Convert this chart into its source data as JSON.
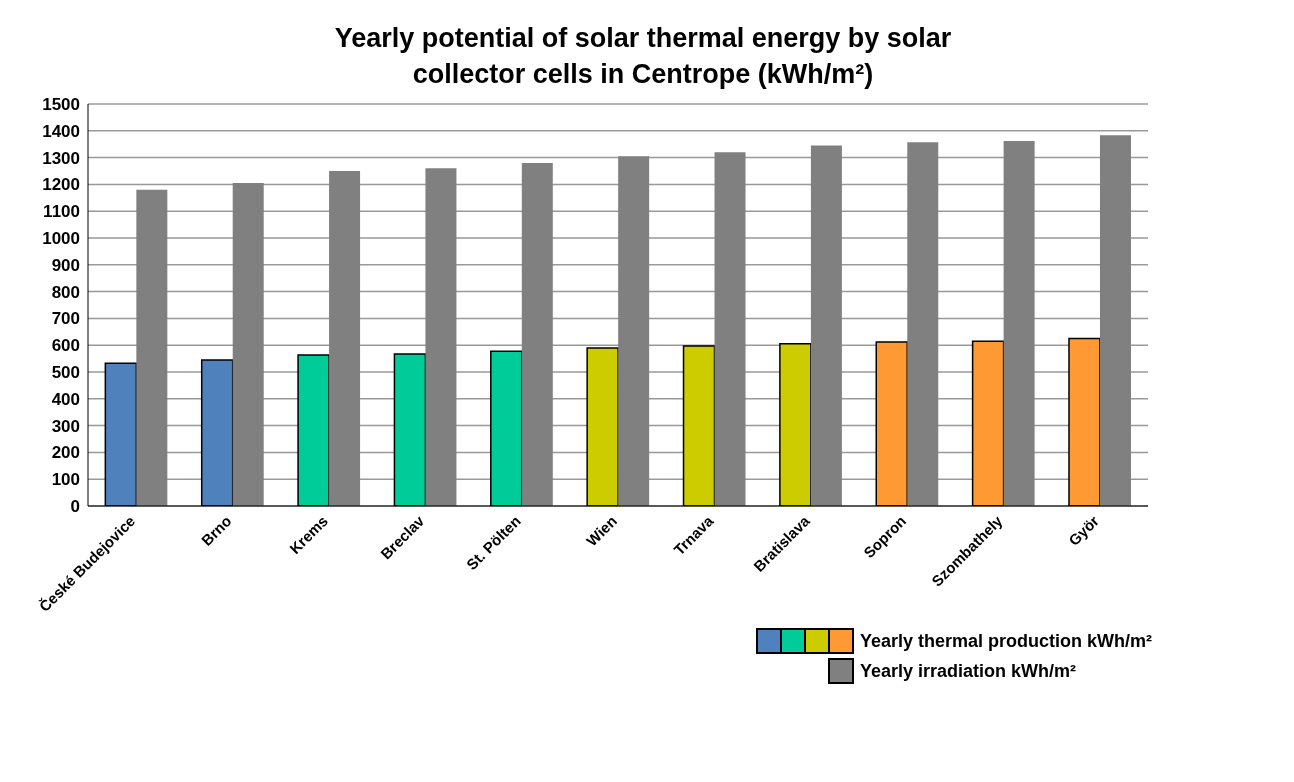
{
  "chart_data": {
    "type": "bar",
    "title": "Yearly potential of solar thermal energy by solar collector cells in Centrope (kWh/m²)",
    "categories": [
      "České Budejovice",
      "Brno",
      "Krems",
      "Breclav",
      "St. Pölten",
      "Wien",
      "Trnava",
      "Bratislava",
      "Sopron",
      "Szombathely",
      "Györ"
    ],
    "series": [
      {
        "name": "Yearly thermal production kWh/m²",
        "colors": [
          "#4f81bd",
          "#4f81bd",
          "#00cc99",
          "#00cc99",
          "#00cc99",
          "#cccc00",
          "#cccc00",
          "#cccc00",
          "#ff9933",
          "#ff9933",
          "#ff9933"
        ],
        "values": [
          533,
          545,
          563,
          567,
          577,
          590,
          597,
          605,
          612,
          615,
          625
        ]
      },
      {
        "name": "Yearly irradiation kWh/m²",
        "color": "#808080",
        "values": [
          1180,
          1205,
          1250,
          1260,
          1280,
          1305,
          1320,
          1345,
          1357,
          1362,
          1383
        ]
      }
    ],
    "ylim": [
      0,
      1500
    ],
    "yticks": [
      0,
      100,
      200,
      300,
      400,
      500,
      600,
      700,
      800,
      900,
      1000,
      1100,
      1200,
      1300,
      1400,
      1500
    ],
    "grid": "y",
    "legend": "bottom right"
  }
}
